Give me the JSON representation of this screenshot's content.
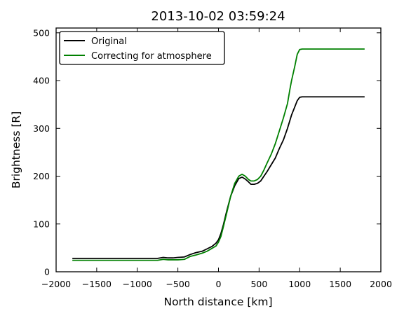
{
  "chart_data": {
    "type": "line",
    "title": "2013-10-02 03:59:24",
    "xlabel": "North distance [km]",
    "ylabel": "Brightness [R]",
    "xlim": [
      -2000,
      2000
    ],
    "ylim": [
      0,
      510
    ],
    "xticks": [
      -2000,
      -1500,
      -1000,
      -500,
      0,
      500,
      1000,
      1500,
      2000
    ],
    "yticks": [
      0,
      100,
      200,
      300,
      400,
      500
    ],
    "xtick_labels": [
      "−2000",
      "−1500",
      "−1000",
      "−500",
      "0",
      "500",
      "1000",
      "1500",
      "2000"
    ],
    "ytick_labels": [
      "0",
      "100",
      "200",
      "300",
      "400",
      "500"
    ],
    "grid": false,
    "legend_position": "top-left",
    "series": [
      {
        "name": "Original",
        "color": "#000000",
        "x": [
          -1800,
          -1500,
          -1000,
          -750,
          -680,
          -620,
          -560,
          -500,
          -420,
          -350,
          -280,
          -200,
          -140,
          -80,
          -30,
          0,
          30,
          60,
          100,
          150,
          200,
          250,
          290,
          330,
          370,
          400,
          440,
          480,
          520,
          560,
          600,
          650,
          700,
          750,
          800,
          850,
          900,
          940,
          970,
          1000,
          1030,
          1100,
          1200,
          1500,
          1800
        ],
        "y": [
          28,
          28,
          28,
          28,
          30,
          29,
          29,
          30,
          31,
          36,
          40,
          43,
          48,
          53,
          60,
          67,
          80,
          98,
          126,
          158,
          180,
          195,
          198,
          194,
          188,
          183,
          183,
          185,
          190,
          200,
          210,
          224,
          238,
          258,
          276,
          300,
          328,
          345,
          358,
          365,
          366,
          366,
          366,
          366,
          366
        ]
      },
      {
        "name": "Correcting for atmosphere",
        "color": "#008000",
        "x": [
          -1800,
          -1500,
          -1000,
          -750,
          -680,
          -620,
          -560,
          -500,
          -420,
          -350,
          -280,
          -200,
          -140,
          -80,
          -30,
          0,
          30,
          60,
          100,
          150,
          200,
          250,
          290,
          330,
          370,
          400,
          440,
          480,
          520,
          560,
          600,
          650,
          700,
          750,
          800,
          850,
          880,
          900,
          940,
          970,
          1000,
          1030,
          1100,
          1200,
          1500,
          1800
        ],
        "y": [
          24,
          24,
          24,
          24,
          26,
          25,
          25,
          25,
          26,
          32,
          35,
          39,
          43,
          49,
          54,
          62,
          74,
          94,
          122,
          158,
          185,
          200,
          204,
          200,
          193,
          190,
          190,
          193,
          200,
          213,
          228,
          246,
          268,
          295,
          322,
          352,
          382,
          400,
          430,
          455,
          465,
          466,
          466,
          466,
          466,
          466
        ]
      }
    ]
  }
}
